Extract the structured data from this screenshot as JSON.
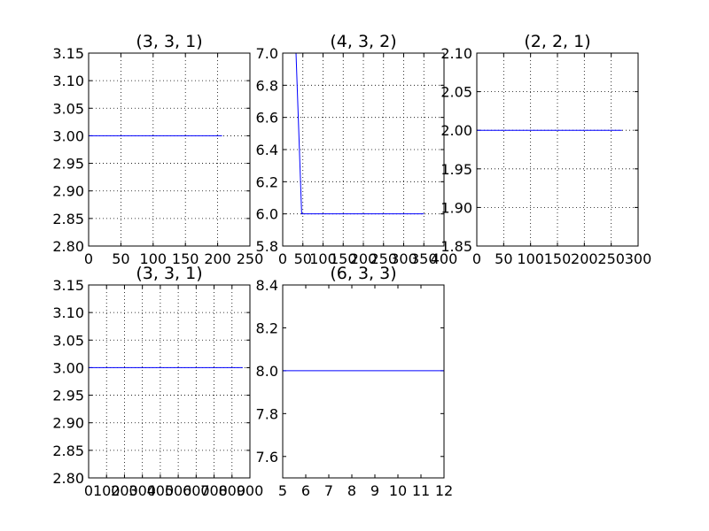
{
  "colors": {
    "line": "#0000ff",
    "axes": "#000000",
    "grid": "#000000",
    "background": "#ffffff"
  },
  "chart_data": [
    {
      "type": "line",
      "title": "(3, 3, 1)",
      "xlim": [
        0,
        250
      ],
      "ylim": [
        2.8,
        3.15
      ],
      "xticks": [
        0,
        50,
        100,
        150,
        200,
        250
      ],
      "xtick_labels": [
        "0",
        "50",
        "100",
        "150",
        "200",
        "250"
      ],
      "yticks": [
        2.8,
        2.85,
        2.9,
        2.95,
        3.0,
        3.05,
        3.1,
        3.15
      ],
      "ytick_labels": [
        "2.80",
        "2.85",
        "2.90",
        "2.95",
        "3.00",
        "3.05",
        "3.10",
        "3.15"
      ],
      "grid": true,
      "series": [
        {
          "x": [
            0,
            207
          ],
          "y": [
            3.0,
            3.0
          ]
        }
      ]
    },
    {
      "type": "line",
      "title": "(4, 3, 2)",
      "xlim": [
        0,
        400
      ],
      "ylim": [
        5.8,
        7.0
      ],
      "xticks": [
        0,
        50,
        100,
        150,
        200,
        250,
        300,
        350,
        400
      ],
      "xtick_labels": [
        "0",
        "50",
        "100",
        "150",
        "200",
        "250",
        "300",
        "350",
        "400"
      ],
      "yticks": [
        5.8,
        6.0,
        6.2,
        6.4,
        6.6,
        6.8,
        7.0
      ],
      "ytick_labels": [
        "5.8",
        "6.0",
        "6.2",
        "6.4",
        "6.6",
        "6.8",
        "7.0"
      ],
      "grid": true,
      "series": [
        {
          "x": [
            33,
            47,
            350
          ],
          "y": [
            7.0,
            6.0,
            6.0
          ]
        }
      ]
    },
    {
      "type": "line",
      "title": "(2, 2, 1)",
      "xlim": [
        0,
        300
      ],
      "ylim": [
        1.85,
        2.1
      ],
      "xticks": [
        0,
        50,
        100,
        150,
        200,
        250,
        300
      ],
      "xtick_labels": [
        "0",
        "50",
        "100",
        "150",
        "200",
        "250",
        "300"
      ],
      "yticks": [
        1.85,
        1.9,
        1.95,
        2.0,
        2.05,
        2.1
      ],
      "ytick_labels": [
        "1.85",
        "1.90",
        "1.95",
        "2.00",
        "2.05",
        "2.10"
      ],
      "grid": true,
      "series": [
        {
          "x": [
            0,
            270
          ],
          "y": [
            2.0,
            2.0
          ]
        }
      ]
    },
    {
      "type": "line",
      "title": "(3, 3, 1)",
      "xlim": [
        0,
        900
      ],
      "ylim": [
        2.8,
        3.15
      ],
      "xticks": [
        0,
        100,
        200,
        300,
        400,
        500,
        600,
        700,
        800,
        900
      ],
      "xtick_labels": [
        "0",
        "100",
        "200",
        "300",
        "400",
        "500",
        "600",
        "700",
        "800",
        "900"
      ],
      "yticks": [
        2.8,
        2.85,
        2.9,
        2.95,
        3.0,
        3.05,
        3.1,
        3.15
      ],
      "ytick_labels": [
        "2.80",
        "2.85",
        "2.90",
        "2.95",
        "3.00",
        "3.05",
        "3.10",
        "3.15"
      ],
      "grid": true,
      "series": [
        {
          "x": [
            0,
            860
          ],
          "y": [
            3.0,
            3.0
          ]
        }
      ]
    },
    {
      "type": "line",
      "title": "(6, 3, 3)",
      "xlim": [
        5,
        12
      ],
      "ylim": [
        7.5,
        8.4
      ],
      "xticks": [
        5,
        6,
        7,
        8,
        9,
        10,
        11,
        12
      ],
      "xtick_labels": [
        "5",
        "6",
        "7",
        "8",
        "9",
        "10",
        "11",
        "12"
      ],
      "yticks": [
        7.6,
        7.8,
        8.0,
        8.2,
        8.4
      ],
      "ytick_labels": [
        "7.6",
        "7.8",
        "8.0",
        "8.2",
        "8.4"
      ],
      "grid": false,
      "series": [
        {
          "x": [
            5,
            12
          ],
          "y": [
            8.0,
            8.0
          ]
        }
      ]
    }
  ]
}
